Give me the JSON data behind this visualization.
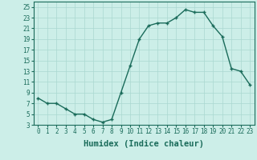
{
  "x": [
    0,
    1,
    2,
    3,
    4,
    5,
    6,
    7,
    8,
    9,
    10,
    11,
    12,
    13,
    14,
    15,
    16,
    17,
    18,
    19,
    20,
    21,
    22,
    23
  ],
  "y": [
    8,
    7,
    7,
    6,
    5,
    5,
    4,
    3.5,
    4,
    9,
    14,
    19,
    21.5,
    22,
    22,
    23,
    24.5,
    24,
    24,
    21.5,
    19.5,
    13.5,
    13,
    10.5
  ],
  "line_color": "#1a6b5a",
  "marker": "+",
  "marker_color": "#1a6b5a",
  "bg_color": "#cceee8",
  "grid_color": "#aad8d0",
  "xlabel": "Humidex (Indice chaleur)",
  "xlim": [
    -0.5,
    23.5
  ],
  "ylim": [
    3,
    26
  ],
  "yticks": [
    3,
    5,
    7,
    9,
    11,
    13,
    15,
    17,
    19,
    21,
    23,
    25
  ],
  "xticks": [
    0,
    1,
    2,
    3,
    4,
    5,
    6,
    7,
    8,
    9,
    10,
    11,
    12,
    13,
    14,
    15,
    16,
    17,
    18,
    19,
    20,
    21,
    22,
    23
  ],
  "tick_fontsize": 5.5,
  "xlabel_fontsize": 7.5,
  "label_color": "#1a6b5a",
  "linewidth": 1.0,
  "markersize": 3.5
}
